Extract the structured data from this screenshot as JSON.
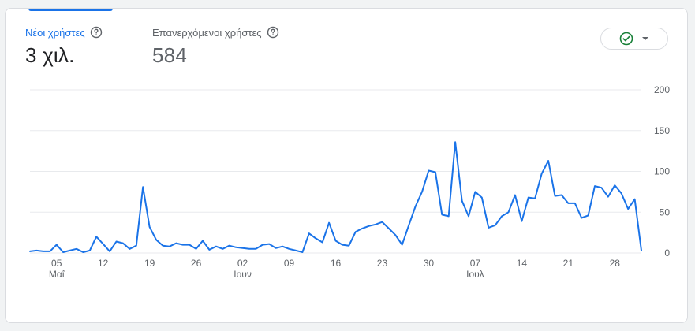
{
  "metrics": {
    "new_users": {
      "label": "Νέοι χρήστες",
      "value": "3 χιλ."
    },
    "returning_users": {
      "label": "Επανερχόμενοι χρήστες",
      "value": "584"
    }
  },
  "compare_button": {
    "icons": [
      "check-circle-icon",
      "dropdown-arrow-icon"
    ],
    "check_color": "#188038"
  },
  "colors": {
    "accent": "#1a73e8",
    "line": "#1a73e8",
    "grid": "#e8eaed"
  },
  "chart_data": {
    "type": "line",
    "title": "",
    "xlabel": "",
    "ylabel": "",
    "ylim": [
      0,
      200
    ],
    "y_ticks": [
      "200",
      "150",
      "100",
      "50",
      "0"
    ],
    "grid": true,
    "x_ticks": [
      {
        "day": "05",
        "month": "Μαΐ"
      },
      {
        "day": "12",
        "month": ""
      },
      {
        "day": "19",
        "month": ""
      },
      {
        "day": "26",
        "month": ""
      },
      {
        "day": "02",
        "month": "Ιουν"
      },
      {
        "day": "09",
        "month": ""
      },
      {
        "day": "16",
        "month": ""
      },
      {
        "day": "23",
        "month": ""
      },
      {
        "day": "30",
        "month": ""
      },
      {
        "day": "07",
        "month": "Ιουλ"
      },
      {
        "day": "14",
        "month": ""
      },
      {
        "day": "21",
        "month": ""
      },
      {
        "day": "28",
        "month": ""
      }
    ],
    "x_start": "2024-05-01",
    "series": [
      {
        "values": [
          2,
          3,
          2,
          2,
          10,
          1,
          3,
          5,
          1,
          3,
          20,
          11,
          2,
          14,
          12,
          5,
          9,
          81,
          32,
          16,
          9,
          8,
          12,
          10,
          10,
          5,
          15,
          4,
          8,
          5,
          9,
          7,
          6,
          5,
          5,
          10,
          11,
          6,
          8,
          5,
          3,
          1,
          24,
          18,
          13,
          37,
          15,
          10,
          9,
          26,
          30,
          33,
          35,
          38,
          30,
          22,
          10,
          34,
          57,
          75,
          101,
          99,
          47,
          45,
          136,
          64,
          45,
          75,
          68,
          31,
          34,
          45,
          50,
          71,
          39,
          68,
          67,
          97,
          113,
          70,
          71,
          61,
          61,
          43,
          46,
          82,
          80,
          69,
          83,
          73,
          54,
          66,
          3
        ]
      }
    ]
  }
}
